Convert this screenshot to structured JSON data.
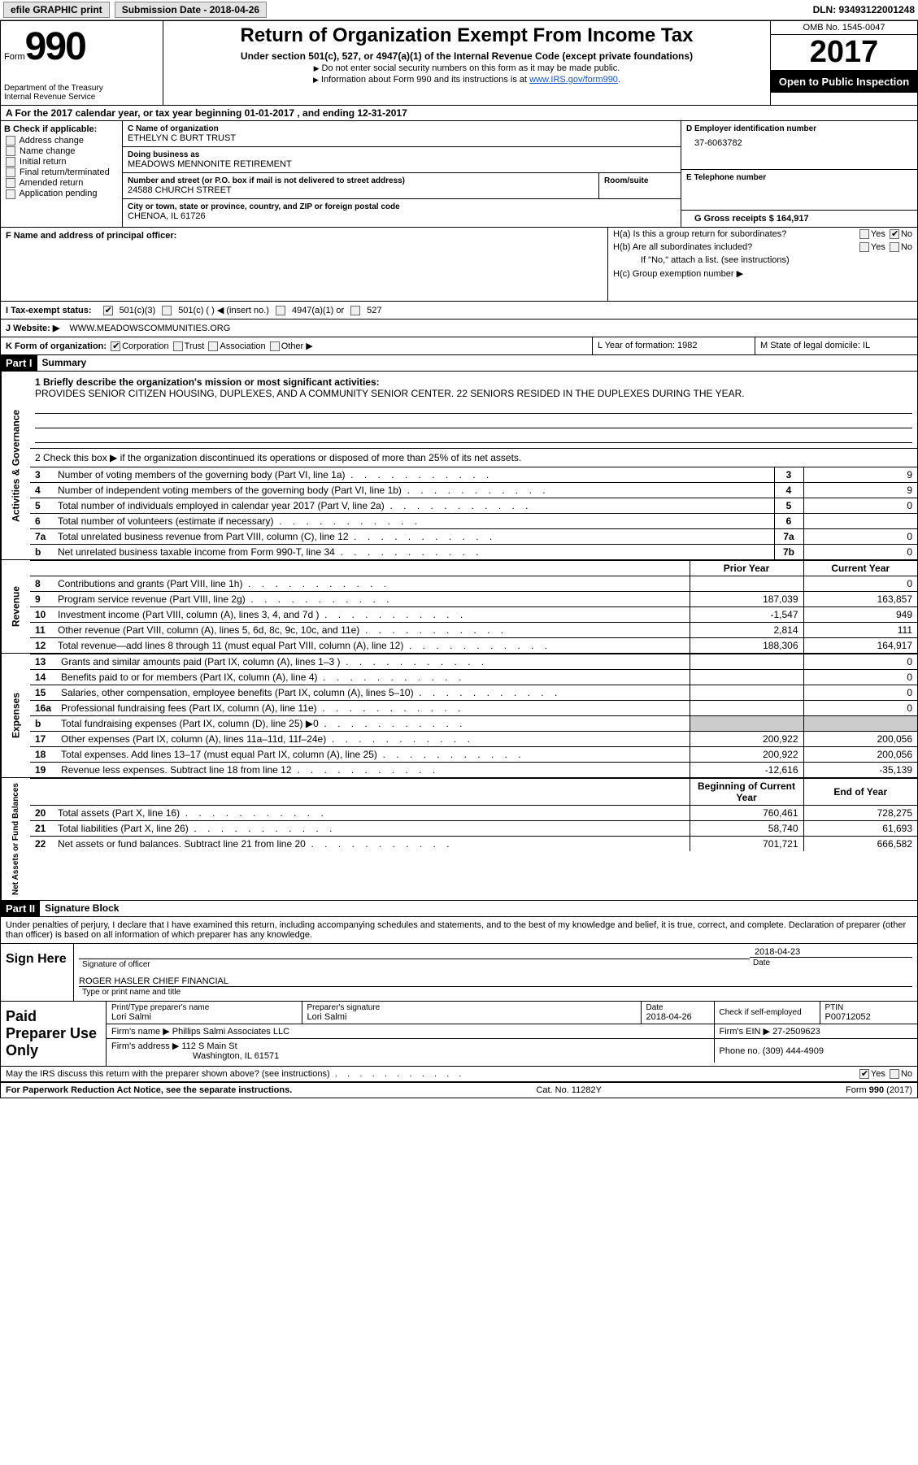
{
  "topbar": {
    "efile_label": "efile GRAPHIC print",
    "submission_label": "Submission Date - 2018-04-26",
    "dln": "DLN: 93493122001248"
  },
  "header": {
    "form_word": "Form",
    "form_number": "990",
    "dept1": "Department of the Treasury",
    "dept2": "Internal Revenue Service",
    "title": "Return of Organization Exempt From Income Tax",
    "subtitle": "Under section 501(c), 527, or 4947(a)(1) of the Internal Revenue Code (except private foundations)",
    "note1": "Do not enter social security numbers on this form as it may be made public.",
    "note2_pre": "Information about Form 990 and its instructions is at ",
    "note2_link": "www.IRS.gov/form990",
    "omb": "OMB No. 1545-0047",
    "year": "2017",
    "open": "Open to Public Inspection"
  },
  "rowA": "A  For the 2017 calendar year, or tax year beginning 01-01-2017   , and ending 12-31-2017",
  "sectionB": {
    "heading": "B Check if applicable:",
    "items": [
      "Address change",
      "Name change",
      "Initial return",
      "Final return/terminated",
      "Amended return",
      "Application pending"
    ]
  },
  "sectionC": {
    "name_lbl": "C Name of organization",
    "name": "ETHELYN C BURT TRUST",
    "dba_lbl": "Doing business as",
    "dba": "MEADOWS MENNONITE RETIREMENT",
    "addr_lbl": "Number and street (or P.O. box if mail is not delivered to street address)",
    "addr": "24588 CHURCH STREET",
    "room_lbl": "Room/suite",
    "city_lbl": "City or town, state or province, country, and ZIP or foreign postal code",
    "city": "CHENOA, IL  61726"
  },
  "sectionD": {
    "ein_lbl": "D Employer identification number",
    "ein": "37-6063782",
    "phone_lbl": "E Telephone number",
    "gross_lbl": "G Gross receipts $ 164,917"
  },
  "sectionF": {
    "lbl": "F Name and address of principal officer:"
  },
  "sectionH": {
    "ha": "H(a)  Is this a group return for subordinates?",
    "hb": "H(b)  Are all subordinates included?",
    "hb_note": "If \"No,\" attach a list. (see instructions)",
    "hc": "H(c)  Group exemption number ▶",
    "yes": "Yes",
    "no": "No"
  },
  "sectionI": {
    "lbl": "I  Tax-exempt status:",
    "o1": "501(c)(3)",
    "o2": "501(c) (  ) ◀ (insert no.)",
    "o3": "4947(a)(1) or",
    "o4": "527"
  },
  "sectionJ": {
    "lbl": "J  Website: ▶",
    "val": "WWW.MEADOWSCOMMUNITIES.ORG"
  },
  "sectionK": {
    "lbl": "K Form of organization:",
    "o1": "Corporation",
    "o2": "Trust",
    "o3": "Association",
    "o4": "Other ▶"
  },
  "sectionL": {
    "txt": "L Year of formation: 1982"
  },
  "sectionM": {
    "txt": "M State of legal domicile: IL"
  },
  "parts": {
    "p1": "Part I",
    "p1t": "Summary",
    "p2": "Part II",
    "p2t": "Signature Block"
  },
  "summary": {
    "s1_lbl": "1  Briefly describe the organization's mission or most significant activities:",
    "s1_txt": "PROVIDES SENIOR CITIZEN HOUSING, DUPLEXES, AND A COMMUNITY SENIOR CENTER. 22 SENIORS RESIDED IN THE DUPLEXES DURING THE YEAR.",
    "s2": "2  Check this box ▶        if the organization discontinued its operations or disposed of more than 25% of its net assets.",
    "rows_a": [
      {
        "n": "3",
        "t": "Number of voting members of the governing body (Part VI, line 1a)",
        "c": "3",
        "v": "9"
      },
      {
        "n": "4",
        "t": "Number of independent voting members of the governing body (Part VI, line 1b)",
        "c": "4",
        "v": "9"
      },
      {
        "n": "5",
        "t": "Total number of individuals employed in calendar year 2017 (Part V, line 2a)",
        "c": "5",
        "v": "0"
      },
      {
        "n": "6",
        "t": "Total number of volunteers (estimate if necessary)",
        "c": "6",
        "v": ""
      },
      {
        "n": "7a",
        "t": "Total unrelated business revenue from Part VIII, column (C), line 12",
        "c": "7a",
        "v": "0"
      },
      {
        "n": "b",
        "t": "Net unrelated business taxable income from Form 990-T, line 34",
        "c": "7b",
        "v": "0"
      }
    ],
    "hdr_prior": "Prior Year",
    "hdr_curr": "Current Year",
    "rev": [
      {
        "n": "8",
        "t": "Contributions and grants (Part VIII, line 1h)",
        "p": "",
        "c": "0"
      },
      {
        "n": "9",
        "t": "Program service revenue (Part VIII, line 2g)",
        "p": "187,039",
        "c": "163,857"
      },
      {
        "n": "10",
        "t": "Investment income (Part VIII, column (A), lines 3, 4, and 7d )",
        "p": "-1,547",
        "c": "949"
      },
      {
        "n": "11",
        "t": "Other revenue (Part VIII, column (A), lines 5, 6d, 8c, 9c, 10c, and 11e)",
        "p": "2,814",
        "c": "111"
      },
      {
        "n": "12",
        "t": "Total revenue—add lines 8 through 11 (must equal Part VIII, column (A), line 12)",
        "p": "188,306",
        "c": "164,917"
      }
    ],
    "exp": [
      {
        "n": "13",
        "t": "Grants and similar amounts paid (Part IX, column (A), lines 1–3 )",
        "p": "",
        "c": "0"
      },
      {
        "n": "14",
        "t": "Benefits paid to or for members (Part IX, column (A), line 4)",
        "p": "",
        "c": "0"
      },
      {
        "n": "15",
        "t": "Salaries, other compensation, employee benefits (Part IX, column (A), lines 5–10)",
        "p": "",
        "c": "0"
      },
      {
        "n": "16a",
        "t": "Professional fundraising fees (Part IX, column (A), line 11e)",
        "p": "",
        "c": "0"
      },
      {
        "n": "b",
        "t": "Total fundraising expenses (Part IX, column (D), line 25) ▶0",
        "p": "SHADE",
        "c": "SHADE"
      },
      {
        "n": "17",
        "t": "Other expenses (Part IX, column (A), lines 11a–11d, 11f–24e)",
        "p": "200,922",
        "c": "200,056"
      },
      {
        "n": "18",
        "t": "Total expenses. Add lines 13–17 (must equal Part IX, column (A), line 25)",
        "p": "200,922",
        "c": "200,056"
      },
      {
        "n": "19",
        "t": "Revenue less expenses. Subtract line 18 from line 12",
        "p": "-12,616",
        "c": "-35,139"
      }
    ],
    "hdr_boy": "Beginning of Current Year",
    "hdr_eoy": "End of Year",
    "na": [
      {
        "n": "20",
        "t": "Total assets (Part X, line 16)",
        "p": "760,461",
        "c": "728,275"
      },
      {
        "n": "21",
        "t": "Total liabilities (Part X, line 26)",
        "p": "58,740",
        "c": "61,693"
      },
      {
        "n": "22",
        "t": "Net assets or fund balances. Subtract line 21 from line 20",
        "p": "701,721",
        "c": "666,582"
      }
    ],
    "v_ag": "Activities & Governance",
    "v_rev": "Revenue",
    "v_exp": "Expenses",
    "v_na": "Net Assets or Fund Balances"
  },
  "sig": {
    "decl": "Under penalties of perjury, I declare that I have examined this return, including accompanying schedules and statements, and to the best of my knowledge and belief, it is true, correct, and complete. Declaration of preparer (other than officer) is based on all information of which preparer has any knowledge.",
    "sign_here": "Sign Here",
    "sig_officer": "Signature of officer",
    "date_lbl": "Date",
    "date_val": "2018-04-23",
    "officer_name": "ROGER HASLER CHIEF FINANCIAL",
    "name_title_lbl": "Type or print name and title",
    "ppu": "Paid Preparer Use Only",
    "prep_name_lbl": "Print/Type preparer's name",
    "prep_name": "Lori Salmi",
    "prep_sig_lbl": "Preparer's signature",
    "prep_sig": "Lori Salmi",
    "prep_date_lbl": "Date",
    "prep_date": "2018-04-26",
    "check_self": "Check        if self-employed",
    "ptin_lbl": "PTIN",
    "ptin": "P00712052",
    "firm_name_lbl": "Firm's name    ▶",
    "firm_name": "Phillips Salmi Associates LLC",
    "firm_ein_lbl": "Firm's EIN ▶",
    "firm_ein": "27-2509623",
    "firm_addr_lbl": "Firm's address ▶",
    "firm_addr1": "112 S Main St",
    "firm_addr2": "Washington, IL  61571",
    "phone_lbl": "Phone no.",
    "phone": "(309) 444-4909",
    "discuss": "May the IRS discuss this return with the preparer shown above? (see instructions)",
    "yes": "Yes",
    "no": "No"
  },
  "footer": {
    "l": "For Paperwork Reduction Act Notice, see the separate instructions.",
    "c": "Cat. No. 11282Y",
    "r": "Form 990 (2017)"
  }
}
